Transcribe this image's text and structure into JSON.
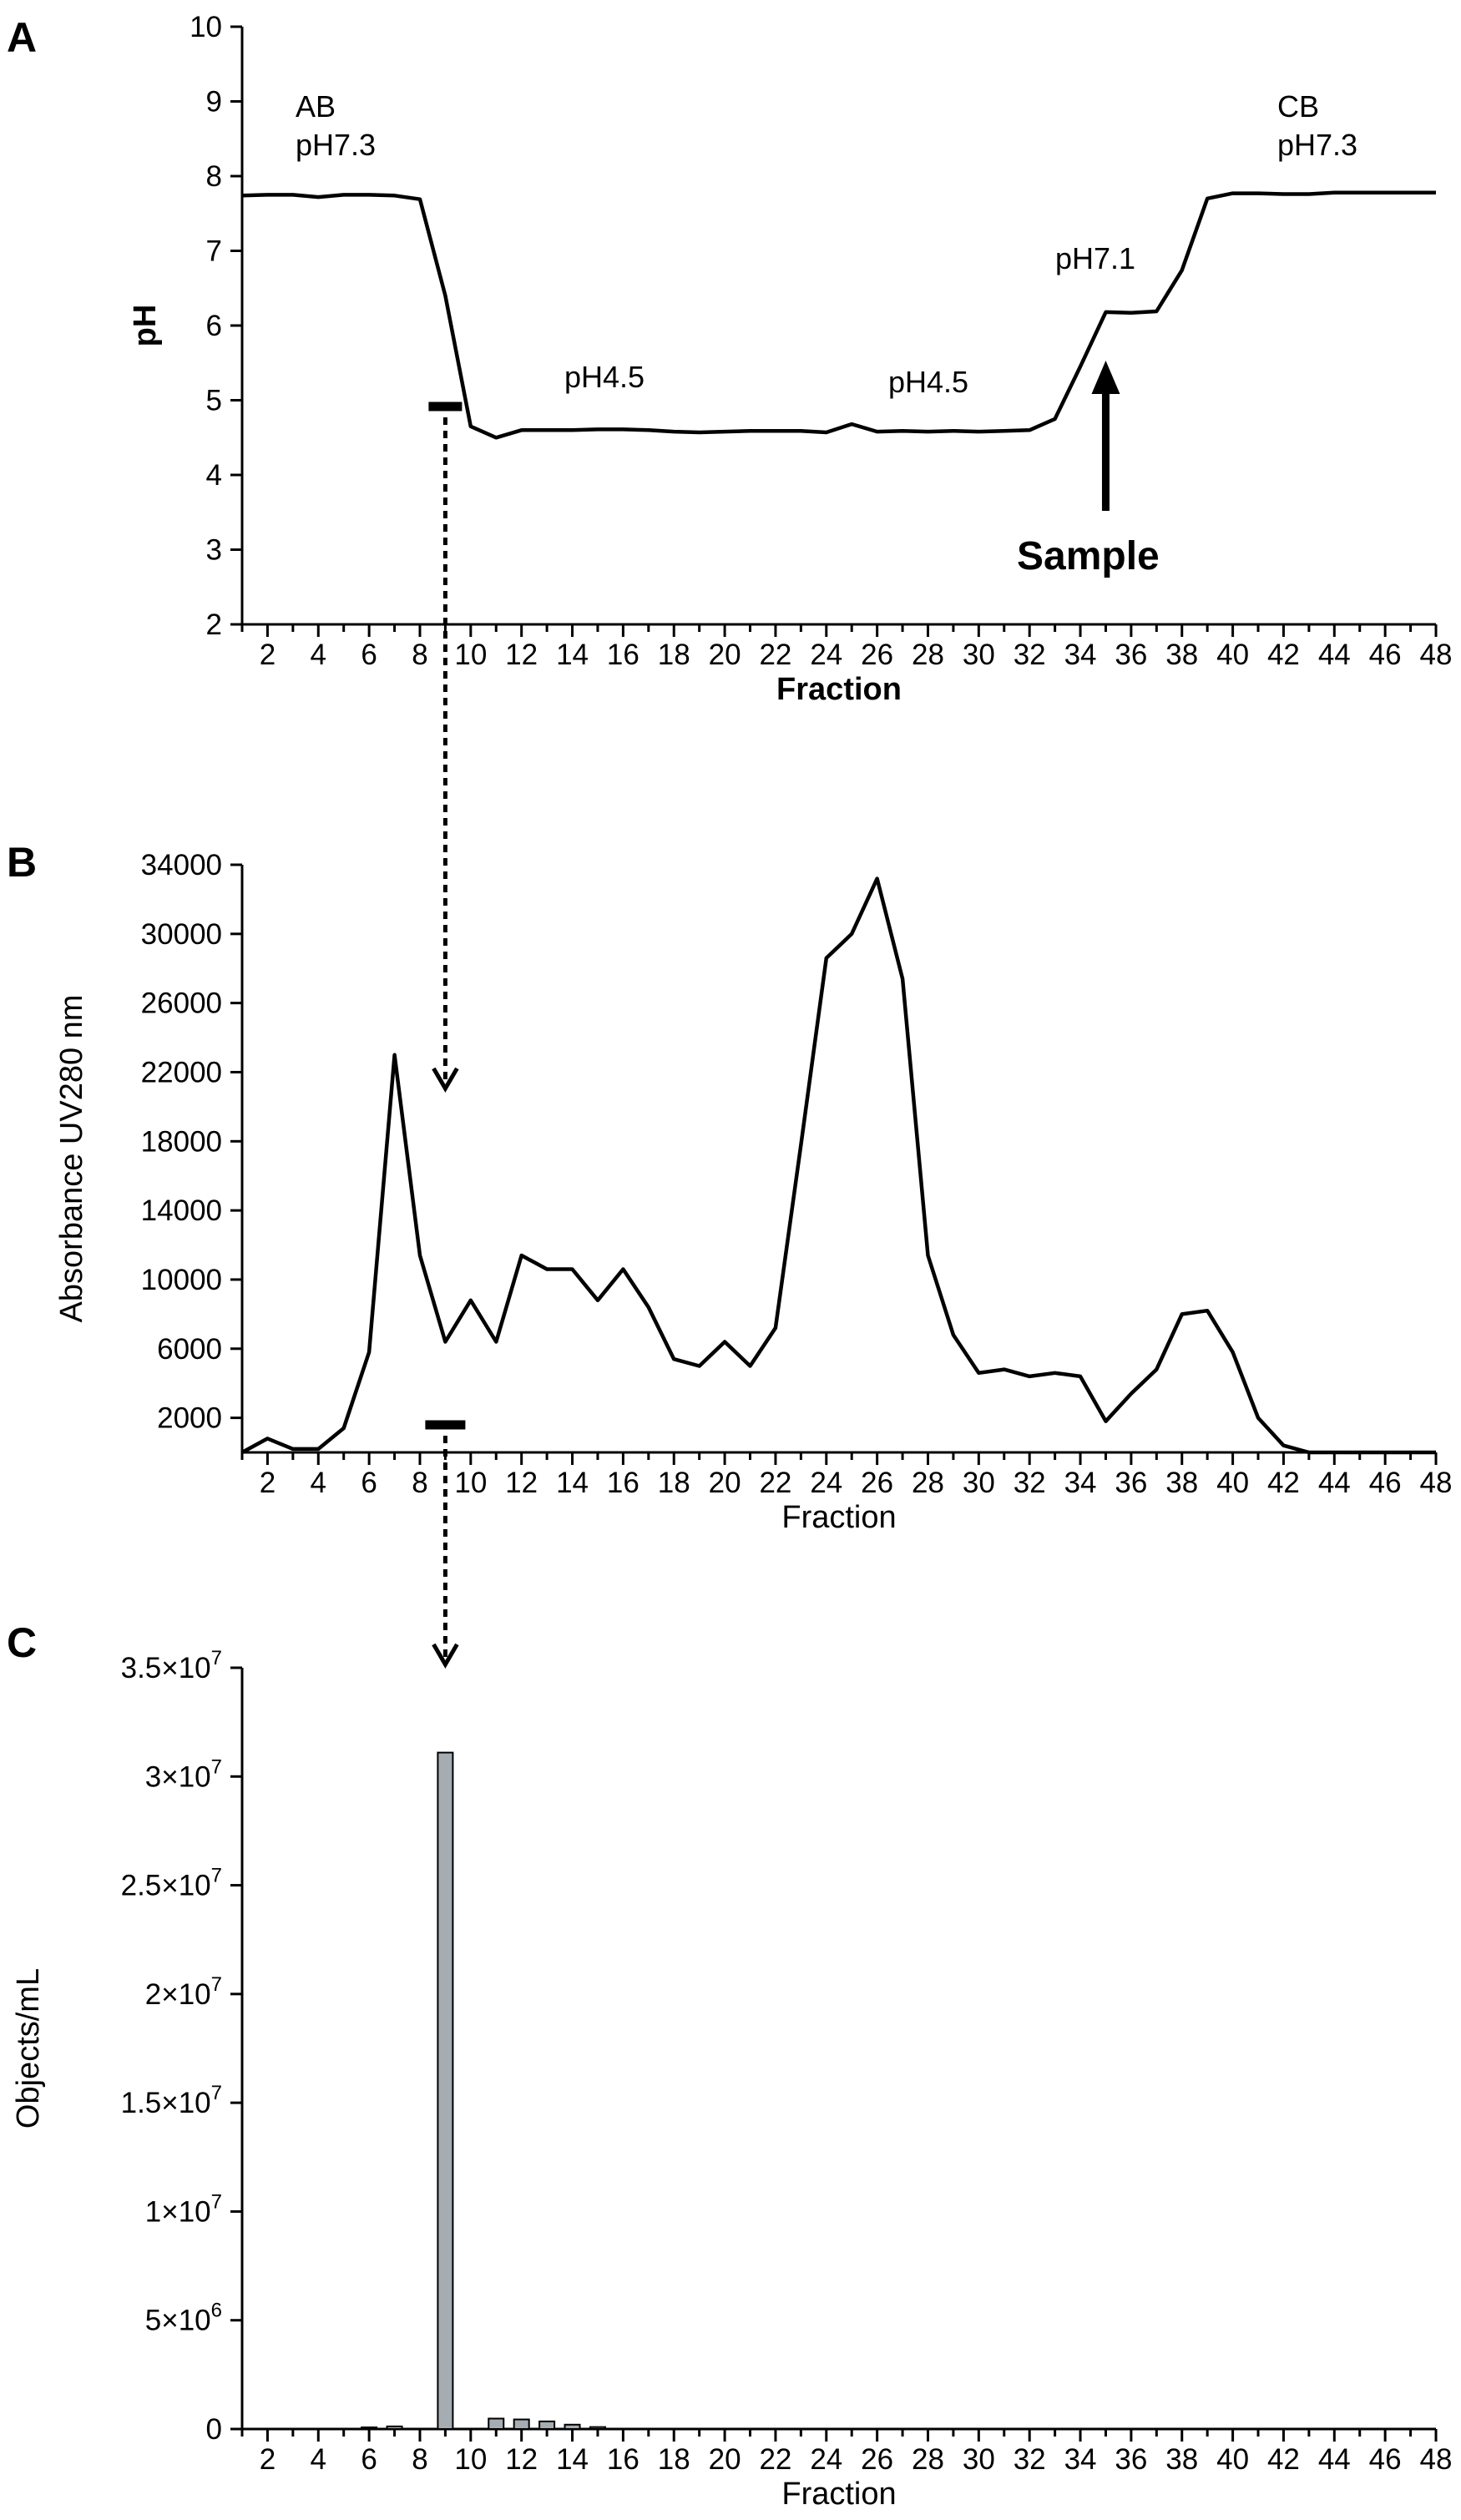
{
  "chart_data": [
    {
      "panel": "A",
      "type": "line",
      "xlabel": "Fraction",
      "ylabel": "pH",
      "ylim": [
        2,
        10
      ],
      "xlim": [
        1,
        48
      ],
      "x_ticks": [
        2,
        4,
        6,
        8,
        10,
        12,
        14,
        16,
        18,
        20,
        22,
        24,
        26,
        28,
        30,
        32,
        34,
        36,
        38,
        40,
        42,
        44,
        46,
        48
      ],
      "y_ticks": [
        2,
        3,
        4,
        5,
        6,
        7,
        8,
        9,
        10
      ],
      "grid": false,
      "x": [
        1,
        2,
        3,
        4,
        5,
        6,
        7,
        8,
        9,
        10,
        11,
        12,
        13,
        14,
        15,
        16,
        17,
        18,
        19,
        20,
        21,
        22,
        23,
        24,
        25,
        26,
        27,
        28,
        29,
        30,
        31,
        32,
        33,
        34,
        35,
        36,
        37,
        38,
        39,
        40,
        41,
        42,
        43,
        44,
        45,
        46,
        47,
        48
      ],
      "values": [
        7.74,
        7.75,
        7.75,
        7.72,
        7.75,
        7.75,
        7.74,
        7.69,
        6.4,
        4.65,
        4.5,
        4.6,
        4.6,
        4.6,
        4.61,
        4.61,
        4.6,
        4.58,
        4.57,
        4.58,
        4.59,
        4.59,
        4.59,
        4.57,
        4.68,
        4.58,
        4.59,
        4.58,
        4.59,
        4.58,
        4.59,
        4.6,
        4.75,
        5.45,
        6.18,
        6.17,
        6.19,
        6.74,
        7.7,
        7.77,
        7.77,
        7.76,
        7.76,
        7.78,
        7.78,
        7.78,
        7.78,
        7.78
      ],
      "annotations": [
        {
          "id": "ab",
          "lines": [
            "AB",
            "pH7.3"
          ]
        },
        {
          "id": "ph45a",
          "lines": [
            "pH4.5"
          ]
        },
        {
          "id": "ph45b",
          "lines": [
            "pH4.5"
          ]
        },
        {
          "id": "ph71",
          "lines": [
            "pH7.1"
          ]
        },
        {
          "id": "cb",
          "lines": [
            "CB",
            "pH7.3"
          ]
        },
        {
          "id": "sample",
          "lines": [
            "Sample"
          ]
        }
      ]
    },
    {
      "panel": "B",
      "type": "line",
      "xlabel": "Fraction",
      "ylabel": "Absorbance UV280 nm",
      "ylim": [
        0,
        34000
      ],
      "xlim": [
        1,
        48
      ],
      "x_ticks": [
        2,
        4,
        6,
        8,
        10,
        12,
        14,
        16,
        18,
        20,
        22,
        24,
        26,
        28,
        30,
        32,
        34,
        36,
        38,
        40,
        42,
        44,
        46,
        48
      ],
      "y_ticks": [
        2000,
        6000,
        10000,
        14000,
        18000,
        22000,
        26000,
        30000,
        34000
      ],
      "grid": false,
      "x": [
        1,
        2,
        3,
        4,
        5,
        6,
        7,
        8,
        9,
        10,
        11,
        12,
        13,
        14,
        15,
        16,
        17,
        18,
        19,
        20,
        21,
        22,
        23,
        24,
        25,
        26,
        27,
        28,
        29,
        30,
        31,
        32,
        33,
        34,
        35,
        36,
        37,
        38,
        39,
        40,
        41,
        42,
        43,
        44,
        45,
        46,
        47,
        48
      ],
      "values": [
        0,
        800,
        200,
        200,
        1400,
        5800,
        23000,
        11400,
        6400,
        8800,
        6400,
        11400,
        10600,
        10600,
        8800,
        10600,
        8400,
        5400,
        5000,
        6400,
        5000,
        7200,
        17800,
        28600,
        30000,
        33200,
        27400,
        11400,
        6800,
        4600,
        4800,
        4400,
        4600,
        4400,
        1800,
        3400,
        4800,
        8000,
        8200,
        5800,
        2000,
        400,
        0,
        0,
        0,
        0,
        0,
        0
      ]
    },
    {
      "panel": "C",
      "type": "bar",
      "xlabel": "Fraction",
      "ylabel": "Objects/mL",
      "ylim": [
        0,
        35000000
      ],
      "xlim": [
        1,
        48
      ],
      "x_ticks": [
        2,
        4,
        6,
        8,
        10,
        12,
        14,
        16,
        18,
        20,
        22,
        24,
        26,
        28,
        30,
        32,
        34,
        36,
        38,
        40,
        42,
        44,
        46,
        48
      ],
      "y_ticks": [
        0,
        5000000,
        10000000,
        15000000,
        20000000,
        25000000,
        30000000,
        35000000
      ],
      "y_tick_labels": [
        {
          "m": "0",
          "e": ""
        },
        {
          "m": "5×10",
          "e": "6"
        },
        {
          "m": "1×10",
          "e": "7"
        },
        {
          "m": "1.5×10",
          "e": "7"
        },
        {
          "m": "2×10",
          "e": "7"
        },
        {
          "m": "2.5×10",
          "e": "7"
        },
        {
          "m": "3×10",
          "e": "7"
        },
        {
          "m": "3.5×10",
          "e": "7"
        }
      ],
      "grid": false,
      "x": [
        6,
        7,
        9,
        11,
        12,
        13,
        14,
        15
      ],
      "values": [
        50000,
        120000,
        31100000,
        480000,
        440000,
        350000,
        200000,
        90000
      ]
    }
  ],
  "panel_letters": {
    "a": "A",
    "b": "B",
    "c": "C"
  },
  "colors": {
    "line": "#000000",
    "bar_fill": "#a5adb3",
    "bar_stroke": "#000000",
    "background": "#ffffff"
  }
}
